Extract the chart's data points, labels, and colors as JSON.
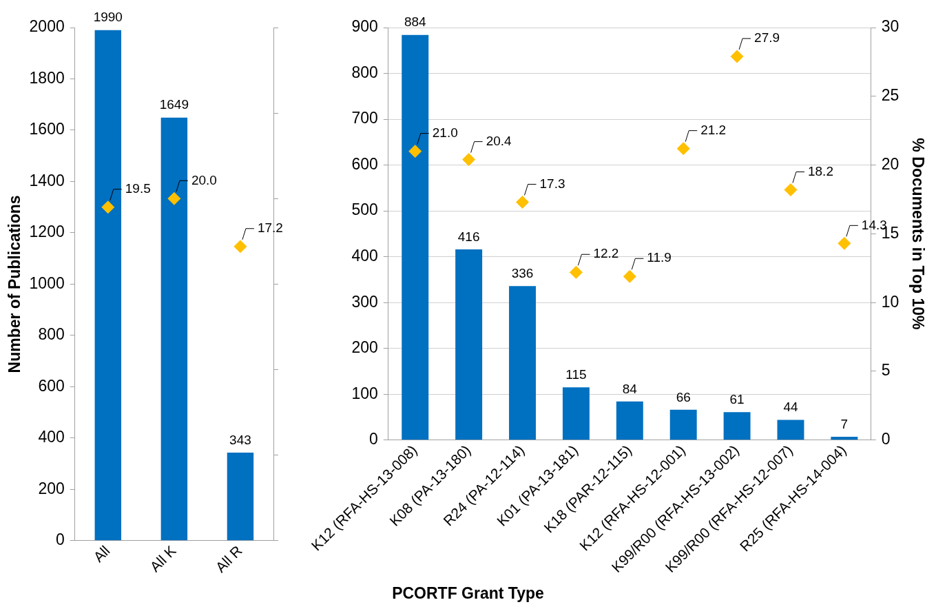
{
  "chart_data": [
    {
      "type": "bar",
      "ylabel": "Number of Publications",
      "categories": [
        "All",
        "All K",
        "All R"
      ],
      "ylim": [
        0,
        2000
      ],
      "yticks": [
        0,
        200,
        400,
        600,
        800,
        1000,
        1200,
        1400,
        1600,
        1800,
        2000
      ],
      "y2lim": [
        0,
        30
      ],
      "y2ticks": [
        {
          "value": 0,
          "label": null
        },
        {
          "value": 5,
          "label": null
        },
        {
          "value": 10,
          "label": null
        },
        {
          "value": 15,
          "label": null
        },
        {
          "value": 20,
          "label": null
        },
        {
          "value": 25,
          "label": null
        },
        {
          "value": 30,
          "label": null
        }
      ],
      "grid": false,
      "legend": false,
      "data_labels": true,
      "series": [
        {
          "color": "#0070c0",
          "values": [
            1990,
            1649,
            343
          ]
        },
        {
          "type": "scatter",
          "axis": "y2",
          "marker": "diamond",
          "color": "#ffc000",
          "x": [
            "All",
            "All K",
            "All R"
          ],
          "values": [
            19.5,
            20.0,
            17.2
          ],
          "value_labels": [
            "19.5",
            "20.0",
            "17.2"
          ]
        }
      ]
    },
    {
      "type": "bar",
      "xlabel": "PCORTF Grant Type",
      "y2label": "% Documents in Top 10%",
      "categories": [
        "K12 (RFA-HS-13-008)",
        "K08 (PA-13-180)",
        "R24 (PA-12-114)",
        "K01 (PA-13-181)",
        "K18 (PAR-12-115)",
        "K12 (RFA-HS-12-001)",
        "K99/R00 (RFA-HS-13-002)",
        "K99/R00 (RFA-HS-12-007)",
        "R25 (RFA-HS-14-004)"
      ],
      "ylim": [
        0,
        900
      ],
      "yticks": [
        0,
        100,
        200,
        300,
        400,
        500,
        600,
        700,
        800,
        900
      ],
      "y2lim": [
        0,
        30
      ],
      "y2ticks": [
        0,
        5,
        10,
        15,
        20,
        25,
        30
      ],
      "grid": "y",
      "legend": false,
      "data_labels": true,
      "series": [
        {
          "color": "#0070c0",
          "values": [
            884,
            416,
            336,
            115,
            84,
            66,
            61,
            44,
            7
          ]
        },
        {
          "type": "scatter",
          "axis": "y2",
          "marker": "diamond",
          "color": "#ffc000",
          "x": [
            "K12 (RFA-HS-13-008)",
            "K08 (PA-13-180)",
            "R24 (PA-12-114)",
            "K01 (PA-13-181)",
            "K18 (PAR-12-115)",
            "K12 (RFA-HS-12-001)",
            "K99/R00 (RFA-HS-13-002)",
            "K99/R00 (RFA-HS-12-007)",
            "R25 (RFA-HS-14-004)"
          ],
          "values": [
            21.0,
            20.4,
            17.3,
            12.2,
            11.9,
            21.2,
            27.9,
            18.2,
            14.3
          ],
          "value_labels": [
            "21.0",
            "20.4",
            "17.3",
            "12.2",
            "11.9",
            "21.2",
            "27.9",
            "18.2",
            "14.3"
          ]
        }
      ]
    }
  ]
}
